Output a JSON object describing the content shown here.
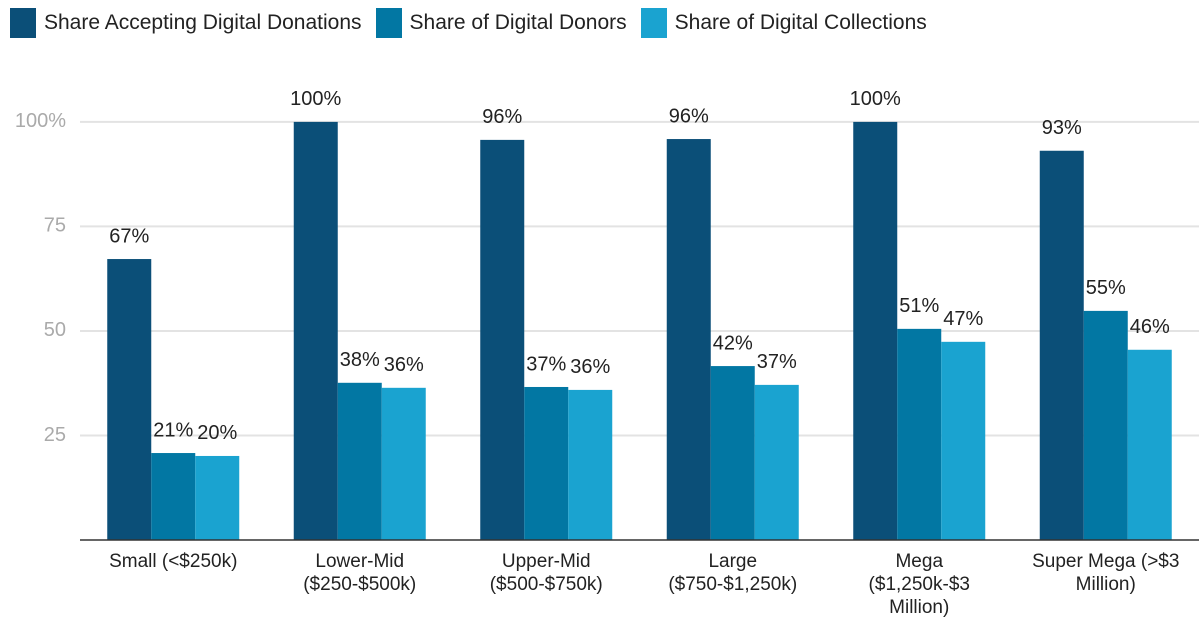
{
  "chart_data": {
    "type": "bar",
    "categories": [
      "Small (<$250k)",
      "Lower-Mid ($250-$500k)",
      "Upper-Mid ($500-$750k)",
      "Large ($750-$1,250k)",
      "Mega ($1,250k-$3 Million)",
      "Super Mega (>$3 Million)"
    ],
    "series": [
      {
        "name": "Share Accepting Digital Donations",
        "color": "#0b4f78",
        "values": [
          67.2,
          100,
          95.7,
          95.9,
          100,
          93.1
        ],
        "value_labels": [
          "67%",
          "100%",
          "96%",
          "96%",
          "100%",
          "93%"
        ]
      },
      {
        "name": "Share of Digital Donors",
        "color": "#0277a3",
        "values": [
          20.8,
          37.6,
          36.6,
          41.6,
          50.5,
          54.8
        ],
        "value_labels": [
          "21%",
          "38%",
          "37%",
          "42%",
          "51%",
          "55%"
        ]
      },
      {
        "name": "Share of Digital Collections",
        "color": "#1aa3d0",
        "values": [
          20.1,
          36.4,
          35.9,
          37.1,
          47.4,
          45.5
        ],
        "value_labels": [
          "20%",
          "36%",
          "36%",
          "37%",
          "47%",
          "46%"
        ]
      }
    ],
    "ylim": [
      0,
      105
    ],
    "yticks": [
      25,
      50,
      75,
      {
        "value": 100,
        "label": "100%"
      }
    ],
    "grid": true,
    "legend": "top"
  }
}
